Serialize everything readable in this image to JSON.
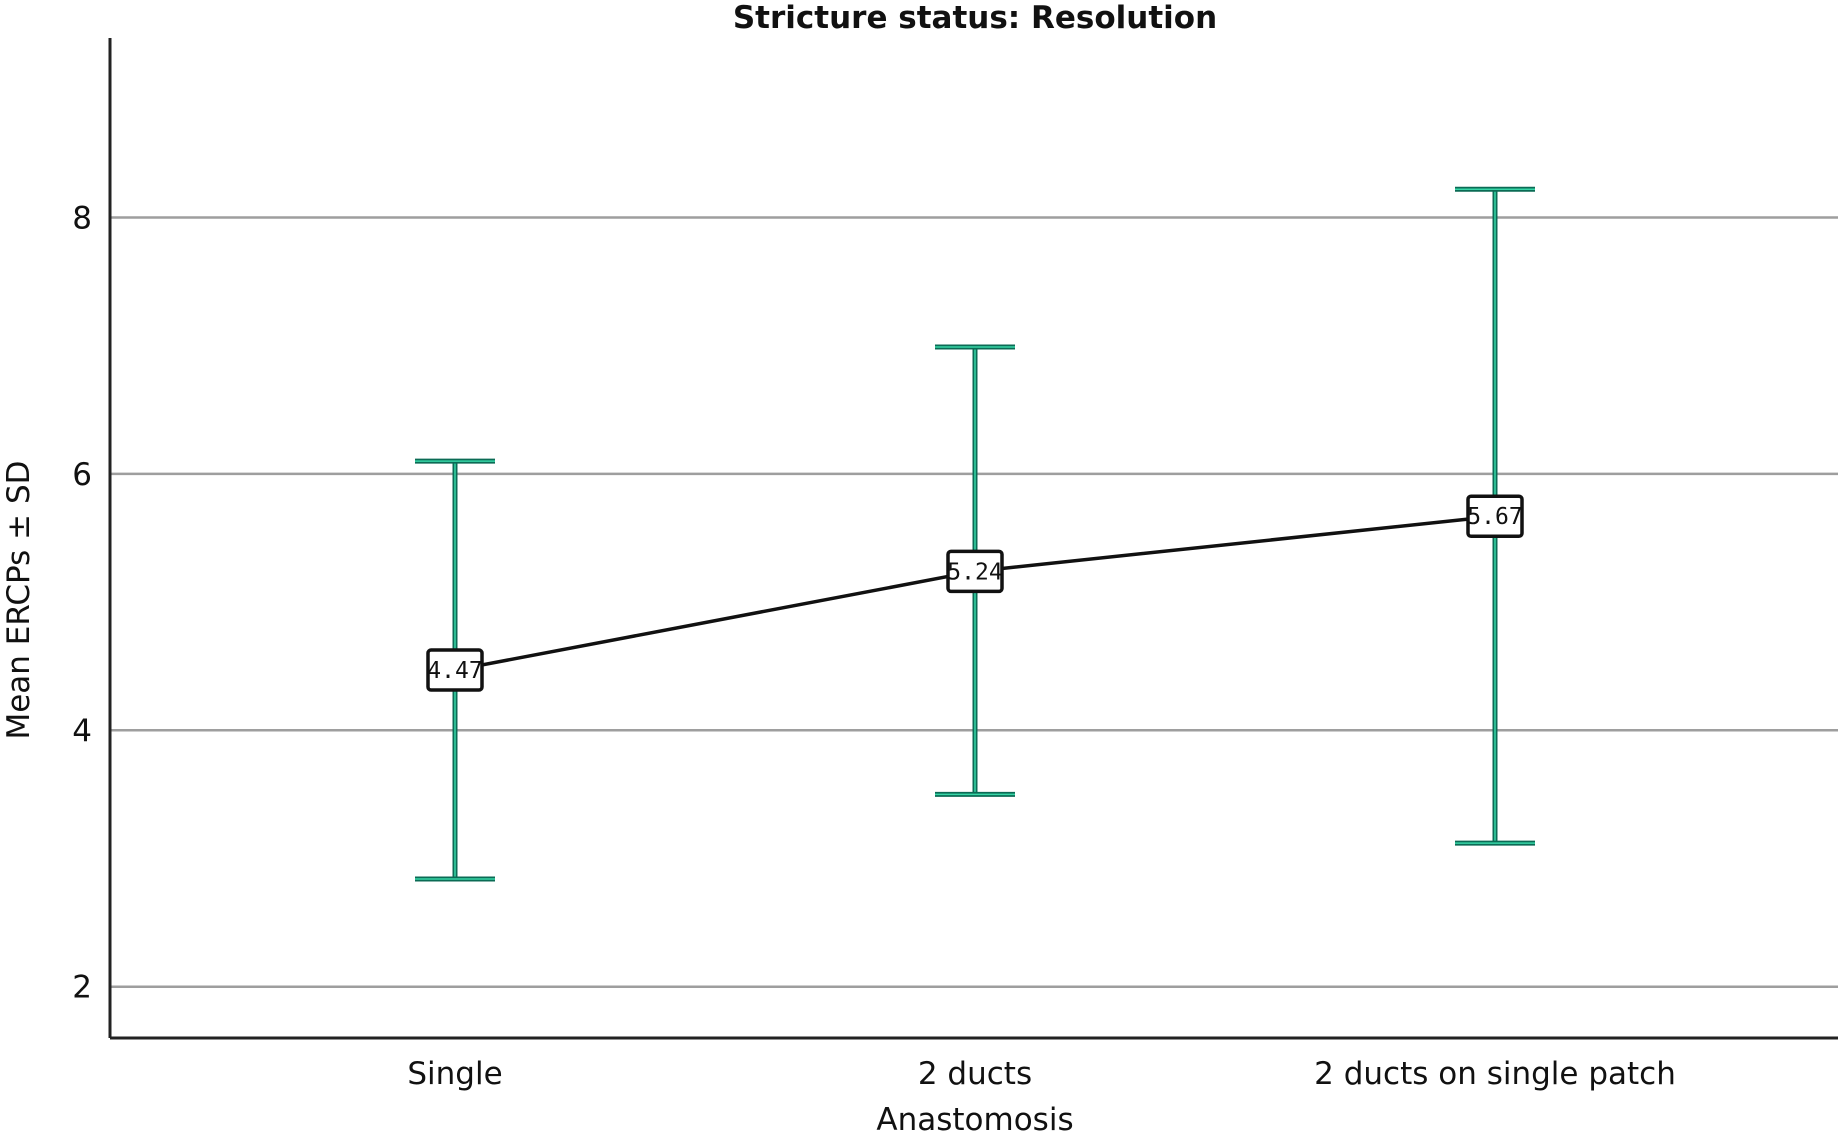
{
  "chart_data": {
    "type": "line",
    "title": "Stricture status: Resolution",
    "xlabel": "Anastomosis",
    "ylabel": "Mean ERCPs ± SD",
    "categories": [
      "Single",
      "2 ducts",
      "2 ducts on single patch"
    ],
    "series": [
      {
        "values": [
          4.47,
          5.24,
          5.67
        ],
        "labels": [
          "4.47",
          "5.24",
          "5.67"
        ],
        "error_low": [
          2.84,
          3.5,
          3.12
        ],
        "error_high": [
          6.1,
          6.99,
          8.22
        ]
      }
    ],
    "yticks": [
      2,
      4,
      6,
      8
    ],
    "ytick_labels": [
      "2",
      "4",
      "6",
      "8"
    ],
    "ylim": [
      1.6,
      9.4
    ],
    "grid": true,
    "colors": {
      "error_bar": "#0b6b55",
      "error_bar_highlight": "#37d6a6",
      "line": "#111111",
      "grid": "#9e9e9e"
    }
  }
}
